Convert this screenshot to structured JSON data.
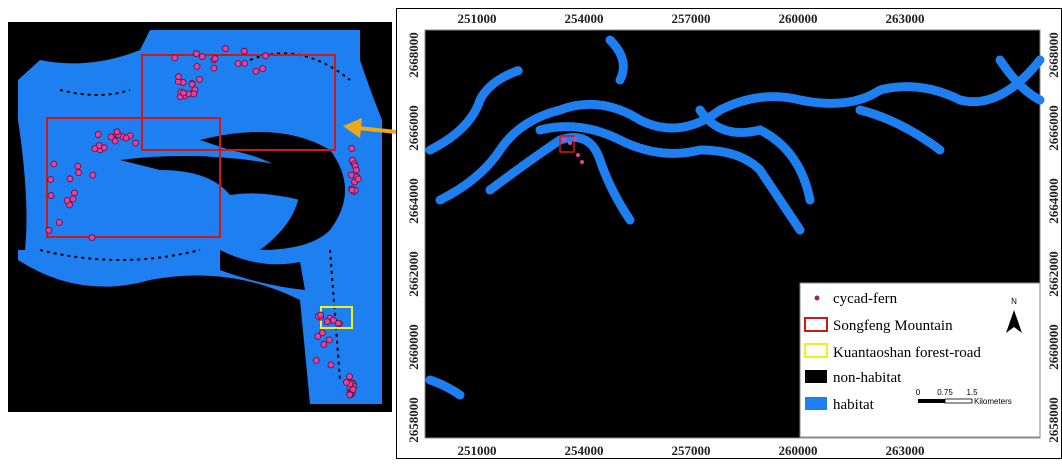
{
  "map": {
    "x_ticks": [
      251000,
      254000,
      257000,
      260000,
      263000
    ],
    "y_ticks": [
      2668000,
      2666000,
      2664000,
      2662000,
      2660000,
      2658000
    ],
    "legend": [
      "cycad-fern",
      "Songfeng Mountain",
      "Kuantaoshan forest-road",
      "non-habitat",
      "habitat"
    ],
    "north": "N",
    "scale_labels": [
      "0",
      "0.75",
      "1.5"
    ],
    "scale_unit": "Kilometers"
  }
}
